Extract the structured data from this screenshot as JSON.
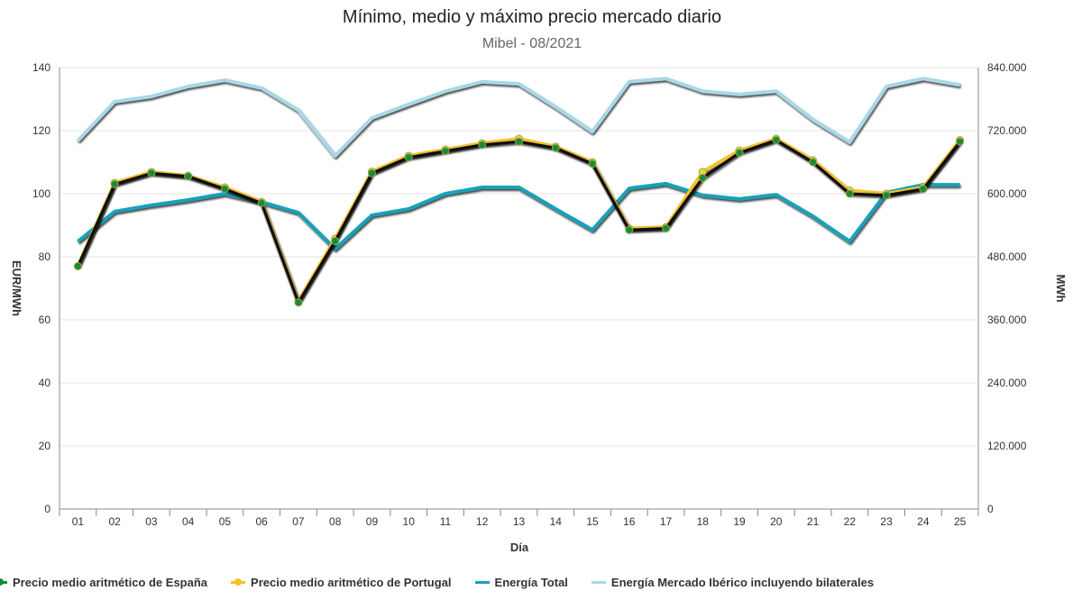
{
  "chart_data": {
    "type": "line",
    "title": "Mínimo, medio y máximo precio mercado diario",
    "subtitle": "Mibel - 08/2021",
    "xlabel": "Día",
    "ylabel": "EUR/MWh",
    "y2label": "MWh",
    "categories": [
      "01",
      "02",
      "03",
      "04",
      "05",
      "06",
      "07",
      "08",
      "09",
      "10",
      "11",
      "12",
      "13",
      "14",
      "15",
      "16",
      "17",
      "18",
      "19",
      "20",
      "21",
      "22",
      "23",
      "24",
      "25"
    ],
    "ylim": [
      0,
      140
    ],
    "y2lim": [
      0,
      840000
    ],
    "yticks": [
      "0",
      "20",
      "40",
      "60",
      "80",
      "100",
      "120",
      "140"
    ],
    "y2ticks": [
      "0",
      "120.000",
      "240.000",
      "360.000",
      "480.000",
      "600.000",
      "720.000",
      "840.000"
    ],
    "grid": true,
    "legend_position": "bottom",
    "series": [
      {
        "name": "Precio medio aritmético de España",
        "axis": "left",
        "color": "#1a8a3a",
        "line": "#111111",
        "markers": true,
        "values": [
          77,
          103,
          106.5,
          105.5,
          101.5,
          97,
          65.5,
          85,
          106.5,
          111.5,
          113.5,
          115.5,
          116.5,
          114.5,
          109.5,
          88.5,
          89,
          105,
          113,
          117,
          110,
          100,
          99.5,
          101.5,
          116.5
        ]
      },
      {
        "name": "Precio medio aritmético de Portugal",
        "axis": "left",
        "color": "#f2c12e",
        "line": "#f2c12e",
        "markers": true,
        "values": [
          77,
          103.4,
          106.9,
          105.7,
          102,
          97.4,
          66,
          85.7,
          107,
          112,
          114,
          116,
          117.4,
          114.9,
          110,
          89,
          89.4,
          106.9,
          113.7,
          117.4,
          110.6,
          101,
          100,
          102,
          117
        ]
      },
      {
        "name": "Energía Total",
        "axis": "right",
        "color": "#17a2b8",
        "line": "#17a2b8",
        "markers": false,
        "values": [
          509000,
          566000,
          578000,
          588000,
          600000,
          584000,
          564000,
          495000,
          559000,
          571000,
          600000,
          612000,
          612000,
          571000,
          531000,
          610000,
          619000,
          597000,
          590000,
          598000,
          557000,
          509000,
          602000,
          617000,
          617000
        ]
      },
      {
        "name": "Energía Mercado Ibérico incluyendo bilaterales",
        "axis": "right",
        "color": "#a8d8e6",
        "line": "#a8d8e6",
        "markers": false,
        "values": [
          701000,
          775000,
          785000,
          804000,
          816000,
          801000,
          759000,
          672000,
          744000,
          770000,
          795000,
          813000,
          809000,
          765000,
          718000,
          813000,
          819000,
          795000,
          789000,
          795000,
          741000,
          698000,
          804000,
          819000,
          807000
        ]
      }
    ]
  }
}
